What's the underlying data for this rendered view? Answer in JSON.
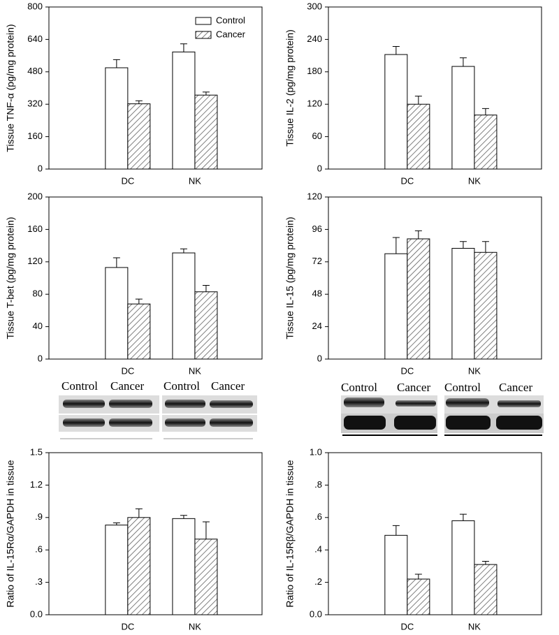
{
  "chart_data": [
    {
      "type": "bar",
      "ylabel": "Tissue TNF-α (pg/mg protein)",
      "categories": [
        "DC",
        "NK"
      ],
      "ylim": [
        0,
        800
      ],
      "yticks": [
        0,
        160,
        320,
        480,
        640,
        800
      ],
      "legend": "upper right",
      "series": [
        {
          "name": "Control",
          "color": "#ffffff",
          "values": [
            500,
            578
          ],
          "errors": [
            40,
            40
          ]
        },
        {
          "name": "Cancer",
          "color": "#555555",
          "hatch": true,
          "values": [
            322,
            365
          ],
          "errors": [
            15,
            15
          ]
        }
      ]
    },
    {
      "type": "bar",
      "ylabel": "Tissue IL-2 (pg/mg protein)",
      "categories": [
        "DC",
        "NK"
      ],
      "ylim": [
        0,
        300
      ],
      "yticks": [
        0,
        60,
        120,
        180,
        240,
        300
      ],
      "series": [
        {
          "color": "#ffffff",
          "values": [
            212,
            190
          ],
          "errors": [
            15,
            16
          ]
        },
        {
          "color": "#555555",
          "hatch": true,
          "values": [
            120,
            100
          ],
          "errors": [
            15,
            12
          ]
        }
      ]
    },
    {
      "type": "bar",
      "ylabel": "Tissue T-bet (pg/mg protein)",
      "categories": [
        "DC",
        "NK"
      ],
      "ylim": [
        0,
        200
      ],
      "yticks": [
        0,
        40,
        80,
        120,
        160,
        200
      ],
      "series": [
        {
          "color": "#ffffff",
          "values": [
            113,
            131
          ],
          "errors": [
            12,
            5
          ]
        },
        {
          "color": "#555555",
          "hatch": true,
          "values": [
            68,
            83
          ],
          "errors": [
            6,
            8
          ]
        }
      ]
    },
    {
      "type": "bar",
      "ylabel": "Tissue IL-15 (pg/mg protein)",
      "categories": [
        "DC",
        "NK"
      ],
      "ylim": [
        0,
        120
      ],
      "yticks": [
        0,
        24,
        48,
        72,
        96,
        120
      ],
      "series": [
        {
          "color": "#ffffff",
          "values": [
            78,
            82
          ],
          "errors": [
            12,
            5
          ]
        },
        {
          "color": "#555555",
          "hatch": true,
          "values": [
            89,
            79
          ],
          "errors": [
            6,
            8
          ]
        }
      ]
    },
    {
      "type": "bar",
      "ylabel": "Ratio of IL-15Rα/GAPDH in tissue",
      "categories": [
        "DC",
        "NK"
      ],
      "ylim": [
        0,
        1.5
      ],
      "yticks": [
        {
          "value": 0,
          "label": "0.0"
        },
        {
          "value": 0.3,
          "label": ".3"
        },
        {
          "value": 0.6,
          "label": ".6"
        },
        {
          "value": 0.9,
          "label": ".9"
        },
        {
          "value": 1.2,
          "label": "1.2"
        },
        {
          "value": 1.5,
          "label": "1.5"
        }
      ],
      "series": [
        {
          "color": "#ffffff",
          "values": [
            0.83,
            0.89
          ],
          "errors": [
            0.02,
            0.03
          ]
        },
        {
          "color": "#555555",
          "hatch": true,
          "values": [
            0.9,
            0.7
          ],
          "errors": [
            0.08,
            0.16
          ]
        }
      ]
    },
    {
      "type": "bar",
      "ylabel": "Ratio of IL-15Rβ/GAPDH in tissue",
      "categories": [
        "DC",
        "NK"
      ],
      "ylim": [
        0,
        1.0
      ],
      "yticks": [
        {
          "value": 0,
          "label": "0.0"
        },
        {
          "value": 0.2,
          "label": ".2"
        },
        {
          "value": 0.4,
          "label": ".4"
        },
        {
          "value": 0.6,
          "label": ".6"
        },
        {
          "value": 0.8,
          "label": ".8"
        },
        {
          "value": 1.0,
          "label": "1.0"
        }
      ],
      "series": [
        {
          "color": "#ffffff",
          "values": [
            0.49,
            0.58
          ],
          "errors": [
            0.06,
            0.04
          ]
        },
        {
          "color": "#555555",
          "hatch": true,
          "values": [
            0.22,
            0.31
          ],
          "errors": [
            0.03,
            0.02
          ]
        }
      ]
    }
  ],
  "blots": {
    "left": [
      "Control",
      "Cancer",
      "Control",
      "Cancer"
    ],
    "right": [
      "Control",
      "Cancer",
      "Control",
      "Cancer"
    ]
  }
}
